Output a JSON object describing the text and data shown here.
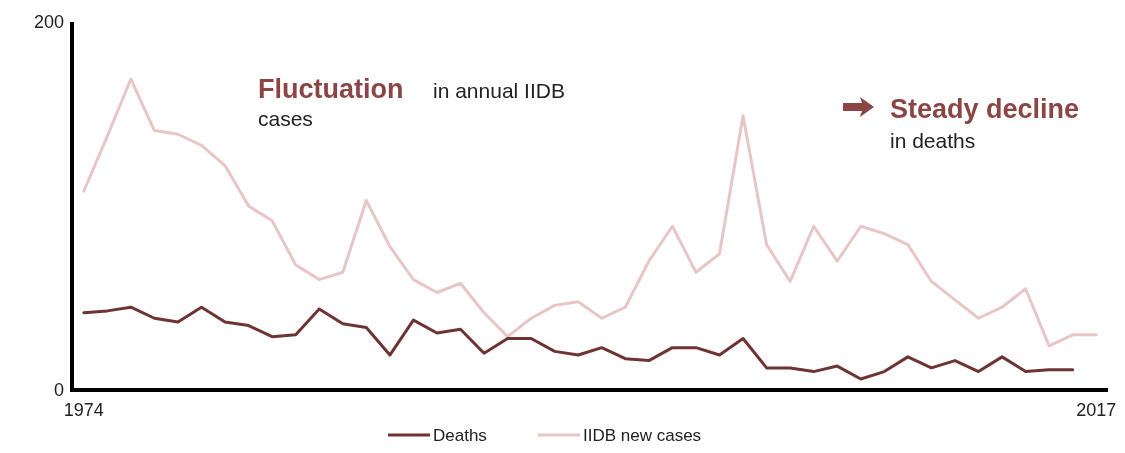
{
  "chart_data": {
    "type": "line",
    "x": [
      1974,
      1975,
      1976,
      1977,
      1978,
      1979,
      1980,
      1981,
      1982,
      1983,
      1984,
      1985,
      1986,
      1987,
      1988,
      1989,
      1990,
      1991,
      1992,
      1993,
      1994,
      1995,
      1996,
      1997,
      1998,
      1999,
      2000,
      2001,
      2002,
      2003,
      2004,
      2005,
      2006,
      2007,
      2008,
      2009,
      2010,
      2011,
      2012,
      2013,
      2014,
      2015,
      2016,
      2017
    ],
    "xlim": [
      1973.5,
      2017.5
    ],
    "xticks": [
      1974,
      2017
    ],
    "ylim": [
      0,
      200
    ],
    "yticks": [
      0,
      200
    ],
    "grid": false,
    "legend": "bottom",
    "marker": "none",
    "line_style": "solid",
    "series": [
      {
        "name": "Deaths",
        "color": "#6e3434",
        "values": [
          42,
          43,
          45,
          39,
          37,
          45,
          37,
          35,
          29,
          30,
          44,
          36,
          34,
          19,
          38,
          31,
          33,
          20,
          28,
          28,
          21,
          19,
          23,
          17,
          16,
          23,
          23,
          19,
          28,
          12,
          12,
          10,
          13,
          6,
          10,
          18,
          12,
          16,
          10,
          18,
          10,
          11,
          11,
          null
        ]
      },
      {
        "name": "IIDB new cases",
        "color": "#e8c6c6",
        "values": [
          108,
          138,
          169,
          141,
          139,
          133,
          122,
          100,
          92,
          68,
          60,
          64,
          103,
          78,
          60,
          53,
          58,
          42,
          29,
          39,
          46,
          48,
          39,
          45,
          70,
          89,
          64,
          74,
          149,
          79,
          59,
          89,
          70,
          89,
          85,
          79,
          59,
          49,
          39,
          45,
          55,
          24,
          30,
          30
        ]
      }
    ],
    "annotations": [
      "Fluctuation",
      "in annual IIDB cases",
      "Steady decline",
      "in deaths"
    ]
  }
}
